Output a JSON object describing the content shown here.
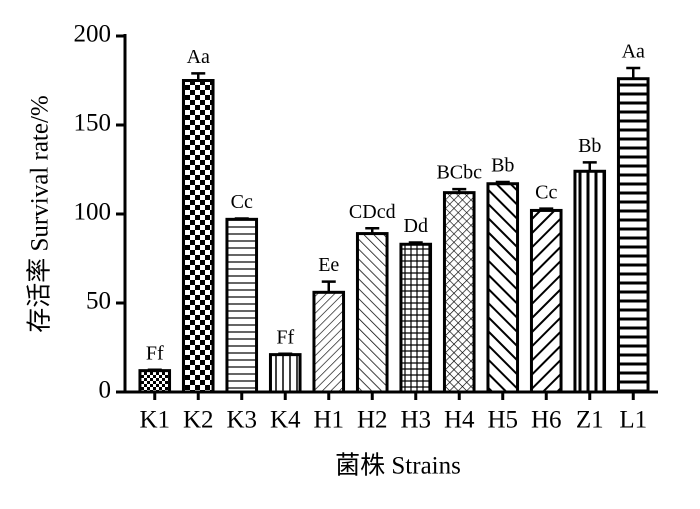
{
  "chart_data": {
    "type": "bar",
    "x_label": "菌株  Strains",
    "y_label": "存活率  Survival rate/%",
    "categories": [
      "K1",
      "K2",
      "K3",
      "K4",
      "H1",
      "H2",
      "H3",
      "H4",
      "H5",
      "H6",
      "Z1",
      "L1"
    ],
    "values": [
      12,
      175,
      97,
      21,
      56,
      89,
      83,
      112,
      117,
      102,
      124,
      176
    ],
    "errors": [
      0.5,
      4,
      0.5,
      0.5,
      6,
      3,
      1,
      2,
      1,
      1,
      5,
      6
    ],
    "annotations": [
      "Ff",
      "Aa",
      "Cc",
      "Ff",
      "Ee",
      "CDcd",
      "Dd",
      "BCbc",
      "Bb",
      "Cc",
      "Bb",
      "Aa"
    ],
    "patterns": [
      "checker-small",
      "checker",
      "hlines",
      "vlines",
      "diag-thin",
      "diag-thin2",
      "grid",
      "crosshatch",
      "diag-back-thick",
      "diag-thick",
      "vlines-thick",
      "hlines-thick"
    ],
    "color": "#000000",
    "ylim": [
      0,
      200
    ],
    "yticks": [
      0,
      50,
      100,
      150,
      200
    ]
  }
}
